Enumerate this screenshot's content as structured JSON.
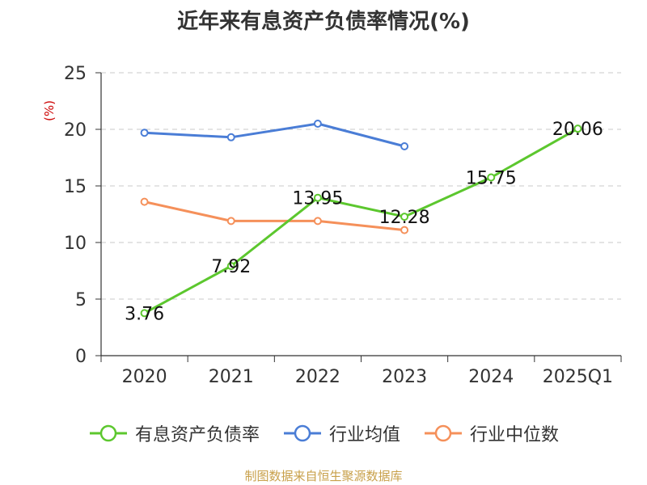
{
  "chart_data": {
    "type": "line",
    "title": "近年来有息资产负债率情况(%)",
    "ylabel": "(%)",
    "categories": [
      "2020",
      "2021",
      "2022",
      "2023",
      "2024",
      "2025Q1"
    ],
    "ylim": [
      0,
      25
    ],
    "yticks": [
      "0",
      "5",
      "10",
      "15",
      "20",
      "25"
    ],
    "series": [
      {
        "name": "有息资产负债率",
        "color": "#5cc72e",
        "values": [
          3.76,
          7.92,
          13.95,
          12.28,
          15.75,
          20.06
        ],
        "labels": [
          "3.76",
          "7.92",
          "13.95",
          "12.28",
          "15.75",
          "20.06"
        ]
      },
      {
        "name": "行业均值",
        "color": "#4a7dd6",
        "values": [
          19.7,
          19.3,
          20.5,
          18.5,
          null,
          null
        ]
      },
      {
        "name": "行业中位数",
        "color": "#f5905a",
        "values": [
          13.6,
          11.9,
          11.9,
          11.1,
          null,
          null
        ]
      }
    ],
    "source": "制图数据来自恒生聚源数据库"
  }
}
